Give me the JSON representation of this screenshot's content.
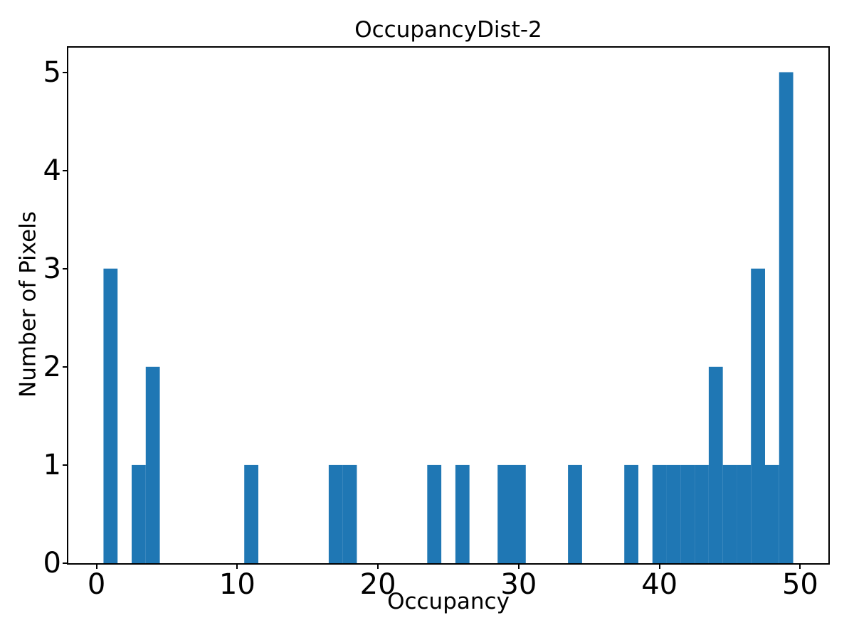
{
  "figure": {
    "background": "#ffffff",
    "text_color": "#000000"
  },
  "chart_data": {
    "type": "bar",
    "title": "OccupancyDist-2",
    "xlabel": "Occupancy",
    "ylabel": "Number of Pixels",
    "bar_color": "#1f77b4",
    "bar_width": 1,
    "xlim": [
      -2,
      52
    ],
    "ylim": [
      0,
      5.25
    ],
    "x_ticks": [
      0,
      10,
      20,
      30,
      40,
      50
    ],
    "y_ticks": [
      0,
      1,
      2,
      3,
      4,
      5
    ],
    "grid": false,
    "legend": null,
    "bins": [
      {
        "x": 1,
        "count": 3
      },
      {
        "x": 3,
        "count": 1
      },
      {
        "x": 4,
        "count": 2
      },
      {
        "x": 11,
        "count": 1
      },
      {
        "x": 17,
        "count": 1
      },
      {
        "x": 18,
        "count": 1
      },
      {
        "x": 24,
        "count": 1
      },
      {
        "x": 26,
        "count": 1
      },
      {
        "x": 29,
        "count": 1
      },
      {
        "x": 30,
        "count": 1
      },
      {
        "x": 34,
        "count": 1
      },
      {
        "x": 38,
        "count": 1
      },
      {
        "x": 40,
        "count": 1
      },
      {
        "x": 41,
        "count": 1
      },
      {
        "x": 42,
        "count": 1
      },
      {
        "x": 43,
        "count": 1
      },
      {
        "x": 44,
        "count": 2
      },
      {
        "x": 45,
        "count": 1
      },
      {
        "x": 46,
        "count": 1
      },
      {
        "x": 47,
        "count": 3
      },
      {
        "x": 48,
        "count": 1
      },
      {
        "x": 49,
        "count": 5
      }
    ]
  }
}
